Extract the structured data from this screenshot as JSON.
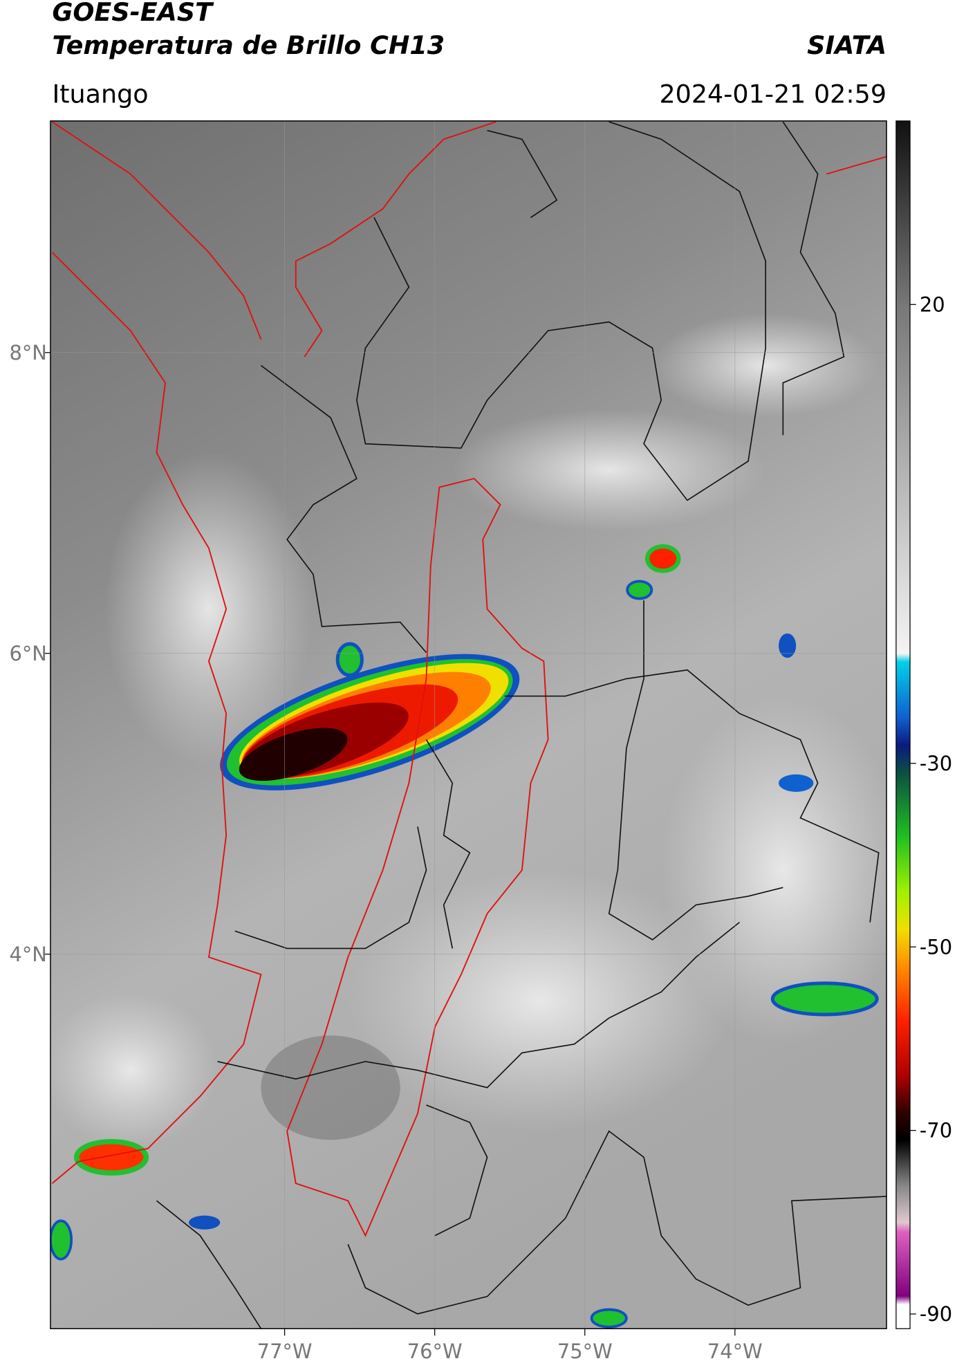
{
  "header": {
    "title": "GOES-EAST",
    "subtitle": "Temperatura de Brillo CH13",
    "brand": "SIATA",
    "location": "Ituango",
    "datetime": "2024-01-21 02:59"
  },
  "map": {
    "lonlim": [
      -78.56,
      -72.99
    ],
    "latlim": [
      1.51,
      9.54
    ],
    "grid": true,
    "lonticks": [
      {
        "value": -77,
        "label": "77°W"
      },
      {
        "value": -76,
        "label": "76°W"
      },
      {
        "value": -75,
        "label": "75°W"
      },
      {
        "value": -74,
        "label": "74°W"
      }
    ],
    "latticks": [
      {
        "value": 8,
        "label": "8°N"
      },
      {
        "value": 6,
        "label": "6°N"
      },
      {
        "value": 4,
        "label": "4°N"
      }
    ]
  },
  "colorbar": {
    "lim": [
      -91.6,
      40
    ],
    "ticks": [
      20,
      -30,
      -50,
      -70,
      -90
    ]
  }
}
